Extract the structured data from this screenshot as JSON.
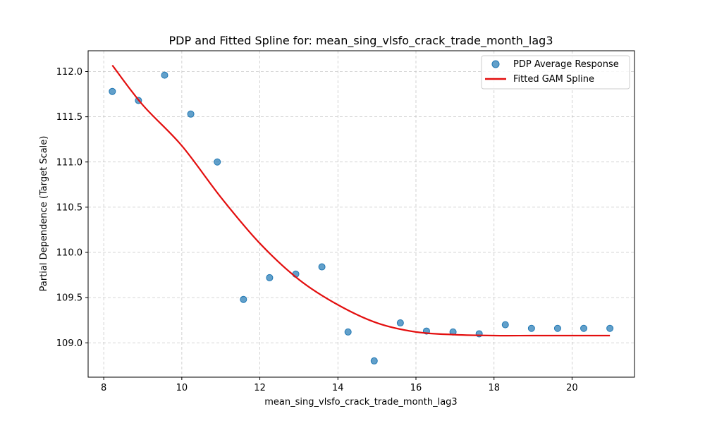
{
  "chart_data": {
    "type": "scatter",
    "title": "PDP and Fitted Spline for: mean_sing_vlsfo_crack_trade_month_lag3",
    "xlabel": "mean_sing_vlsfo_crack_trade_month_lag3",
    "ylabel": "Partial Dependence (Target Scale)",
    "xlim": [
      7.6,
      21.6
    ],
    "ylim": [
      108.62,
      112.23
    ],
    "xticks": [
      8,
      10,
      12,
      14,
      16,
      18,
      20
    ],
    "yticks": [
      109.0,
      109.5,
      110.0,
      110.5,
      111.0,
      111.5,
      112.0
    ],
    "grid": true,
    "legend_position": "top-right",
    "series": [
      {
        "name": "PDP Average Response",
        "kind": "scatter",
        "color": "#1f77b4",
        "x": [
          8.22,
          8.89,
          9.56,
          10.23,
          10.91,
          11.58,
          12.25,
          12.92,
          13.59,
          14.26,
          14.93,
          15.6,
          16.27,
          16.95,
          17.62,
          18.29,
          18.96,
          19.63,
          20.3,
          20.97
        ],
        "y": [
          111.78,
          111.68,
          111.96,
          111.53,
          111.0,
          109.48,
          109.72,
          109.76,
          109.84,
          109.12,
          108.8,
          109.22,
          109.13,
          109.12,
          109.1,
          109.2,
          109.16,
          109.16,
          109.16,
          109.16
        ]
      },
      {
        "name": "Fitted GAM Spline",
        "kind": "line",
        "color": "#e30e0e",
        "x": [
          8.22,
          9.0,
          10.0,
          11.0,
          12.0,
          13.0,
          14.0,
          15.0,
          16.0,
          17.0,
          18.0,
          19.0,
          20.0,
          20.97
        ],
        "y": [
          112.07,
          111.63,
          111.18,
          110.61,
          110.1,
          109.7,
          109.42,
          109.22,
          109.12,
          109.09,
          109.08,
          109.08,
          109.08,
          109.08
        ]
      }
    ]
  }
}
